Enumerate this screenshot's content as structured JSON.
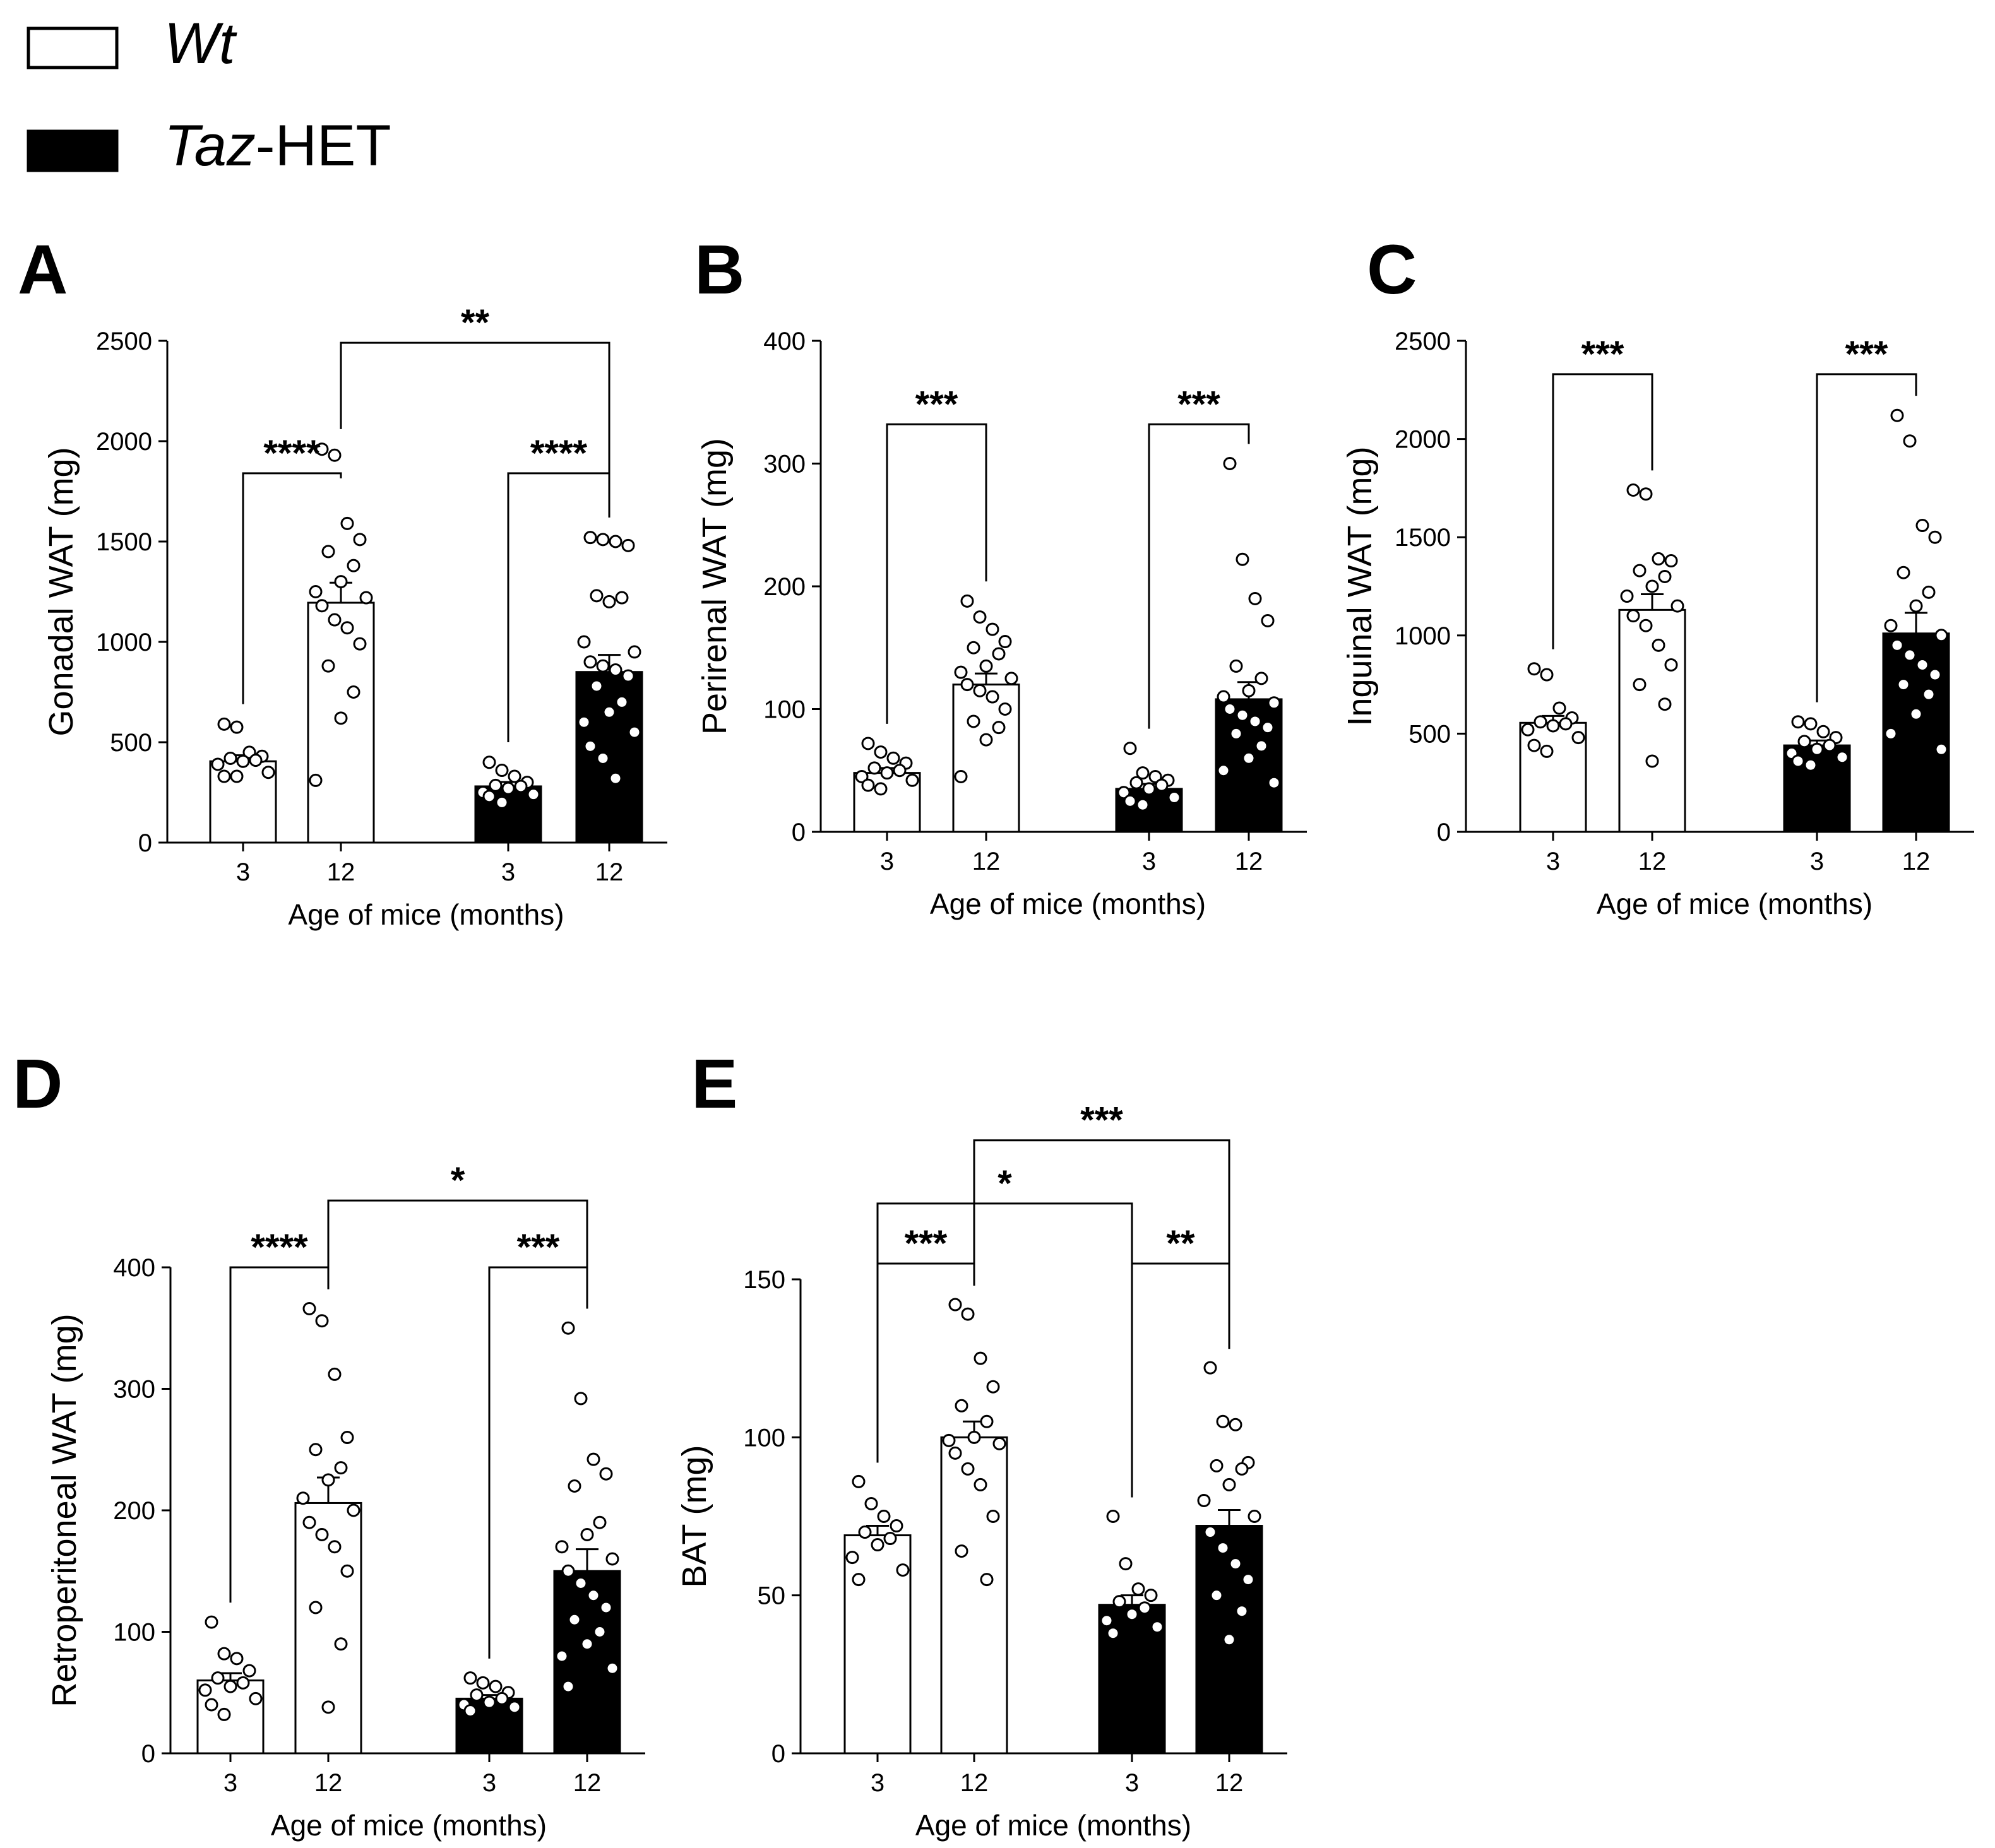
{
  "legend": [
    {
      "group": "Wt",
      "parts": [
        {
          "text": "Wt",
          "italic": true
        }
      ],
      "fill": "#ffffff"
    },
    {
      "group": "Taz-HET",
      "parts": [
        {
          "text": "Taz",
          "italic": true
        },
        {
          "text": "-HET",
          "italic": false
        }
      ],
      "fill": "#000000"
    }
  ],
  "colors": {
    "wt_fill": "#ffffff",
    "het_fill": "#000000",
    "axis": "#000000",
    "point_stroke": "#000000"
  },
  "chart_data": [
    {
      "panel": "A",
      "type": "bar",
      "ylabel": "Gonadal WAT (mg)",
      "xlabel": "Age of mice (months)",
      "ylim": [
        0,
        2500
      ],
      "yticks": [
        0,
        500,
        1000,
        1500,
        2000,
        2500
      ],
      "categories": [
        "3",
        "12",
        "3",
        "12"
      ],
      "groups": [
        "Wt",
        "Wt",
        "Taz-HET",
        "Taz-HET"
      ],
      "values": [
        405,
        1195,
        280,
        850
      ],
      "sem": [
        30,
        100,
        22,
        85
      ],
      "points": [
        [
          590,
          575,
          450,
          430,
          420,
          410,
          405,
          390,
          350,
          330,
          330
        ],
        [
          1960,
          1930,
          1590,
          1510,
          1450,
          1380,
          1300,
          1250,
          1220,
          1180,
          1110,
          1070,
          990,
          880,
          750,
          620,
          310
        ],
        [
          400,
          360,
          330,
          300,
          285,
          280,
          270,
          250,
          240,
          230,
          200
        ],
        [
          1520,
          1510,
          1500,
          1480,
          1230,
          1220,
          1200,
          1000,
          950,
          900,
          880,
          860,
          830,
          780,
          700,
          650,
          600,
          550,
          480,
          420,
          320
        ]
      ],
      "comparisons": [
        {
          "from": 0,
          "to": 1,
          "label": "****",
          "level": 1840
        },
        {
          "from": 2,
          "to": 3,
          "label": "****",
          "level": 1840
        },
        {
          "from": 1,
          "to": 3,
          "label": "**",
          "level": 2490
        }
      ]
    },
    {
      "panel": "B",
      "type": "bar",
      "ylabel": "Perirenal WAT (mg)",
      "xlabel": "Age of mice (months)",
      "ylim": [
        0,
        400
      ],
      "yticks": [
        0,
        100,
        200,
        300,
        400
      ],
      "categories": [
        "3",
        "12",
        "3",
        "12"
      ],
      "groups": [
        "Wt",
        "Wt",
        "Taz-HET",
        "Taz-HET"
      ],
      "values": [
        48,
        120,
        35,
        108
      ],
      "sem": [
        4,
        9,
        4,
        14
      ],
      "points": [
        [
          72,
          65,
          60,
          56,
          52,
          50,
          48,
          45,
          42,
          38,
          35
        ],
        [
          188,
          175,
          165,
          155,
          150,
          145,
          135,
          130,
          125,
          120,
          115,
          110,
          100,
          90,
          85,
          75,
          45
        ],
        [
          68,
          48,
          45,
          42,
          40,
          38,
          35,
          32,
          28,
          25,
          22
        ],
        [
          300,
          222,
          190,
          172,
          135,
          125,
          115,
          110,
          105,
          100,
          95,
          90,
          85,
          80,
          70,
          60,
          50,
          40
        ]
      ],
      "comparisons": [
        {
          "from": 0,
          "to": 1,
          "label": "***",
          "level": 332
        },
        {
          "from": 2,
          "to": 3,
          "label": "***",
          "level": 332
        }
      ]
    },
    {
      "panel": "C",
      "type": "bar",
      "ylabel": "Inguinal WAT (mg)",
      "xlabel": "Age of mice (months)",
      "ylim": [
        0,
        2500
      ],
      "yticks": [
        0,
        500,
        1000,
        1500,
        2000,
        2500
      ],
      "categories": [
        "3",
        "12",
        "3",
        "12"
      ],
      "groups": [
        "Wt",
        "Wt",
        "Taz-HET",
        "Taz-HET"
      ],
      "values": [
        555,
        1130,
        440,
        1010
      ],
      "sem": [
        35,
        80,
        25,
        105
      ],
      "points": [
        [
          830,
          800,
          630,
          580,
          560,
          550,
          540,
          520,
          480,
          440,
          410
        ],
        [
          1740,
          1720,
          1390,
          1380,
          1330,
          1300,
          1250,
          1200,
          1150,
          1100,
          1050,
          950,
          850,
          750,
          650,
          360
        ],
        [
          560,
          550,
          510,
          480,
          460,
          440,
          420,
          400,
          380,
          360,
          340
        ],
        [
          2120,
          1990,
          1560,
          1500,
          1320,
          1220,
          1150,
          1050,
          1000,
          950,
          900,
          850,
          800,
          750,
          700,
          600,
          500,
          420
        ]
      ],
      "comparisons": [
        {
          "from": 0,
          "to": 1,
          "label": "***",
          "level": 2330
        },
        {
          "from": 2,
          "to": 3,
          "label": "***",
          "level": 2330
        }
      ]
    },
    {
      "panel": "D",
      "type": "bar",
      "ylabel": "Retroperitoneal WAT (mg)",
      "xlabel": "Age of mice (months)",
      "ylim": [
        0,
        400
      ],
      "yticks": [
        0,
        100,
        200,
        300,
        400
      ],
      "categories": [
        "3",
        "12",
        "3",
        "12"
      ],
      "groups": [
        "Wt",
        "Wt",
        "Taz-HET",
        "Taz-HET"
      ],
      "values": [
        60,
        206,
        45,
        150
      ],
      "sem": [
        6,
        21,
        3,
        18
      ],
      "points": [
        [
          108,
          82,
          78,
          68,
          62,
          58,
          55,
          52,
          45,
          40,
          32
        ],
        [
          366,
          356,
          312,
          260,
          250,
          235,
          225,
          210,
          200,
          190,
          180,
          170,
          150,
          120,
          90,
          38
        ],
        [
          62,
          58,
          55,
          50,
          48,
          45,
          42,
          40,
          38,
          35
        ],
        [
          350,
          292,
          242,
          230,
          220,
          190,
          180,
          170,
          160,
          150,
          140,
          130,
          120,
          110,
          100,
          90,
          80,
          70,
          55
        ]
      ],
      "comparisons": [
        {
          "from": 0,
          "to": 1,
          "label": "****",
          "level": 400
        },
        {
          "from": 2,
          "to": 3,
          "label": "***",
          "level": 400
        },
        {
          "from": 1,
          "to": 3,
          "label": "*",
          "level": 455
        }
      ]
    },
    {
      "panel": "E",
      "type": "bar",
      "ylabel": "BAT (mg)",
      "xlabel": "Age of mice (months)",
      "ylim": [
        0,
        150
      ],
      "yticks": [
        0,
        50,
        100,
        150
      ],
      "categories": [
        "3",
        "12",
        "3",
        "12"
      ],
      "groups": [
        "Wt",
        "Wt",
        "Taz-HET",
        "Taz-HET"
      ],
      "values": [
        69,
        100,
        47,
        72
      ],
      "sem": [
        3,
        5,
        3,
        5
      ],
      "points": [
        [
          86,
          79,
          75,
          72,
          70,
          68,
          66,
          62,
          58,
          55
        ],
        [
          142,
          139,
          125,
          116,
          110,
          105,
          100,
          99,
          98,
          95,
          90,
          85,
          75,
          64,
          55
        ],
        [
          75,
          60,
          52,
          50,
          48,
          46,
          44,
          42,
          40,
          38
        ],
        [
          122,
          105,
          104,
          92,
          91,
          90,
          85,
          80,
          75,
          70,
          65,
          60,
          55,
          50,
          45,
          36
        ]
      ],
      "comparisons": [
        {
          "from": 0,
          "to": 1,
          "label": "***",
          "level": 155
        },
        {
          "from": 2,
          "to": 3,
          "label": "**",
          "level": 155
        },
        {
          "from": 0,
          "to": 2,
          "label": "*",
          "level": 174
        },
        {
          "from": 1,
          "to": 3,
          "label": "***",
          "level": 194
        }
      ]
    }
  ]
}
